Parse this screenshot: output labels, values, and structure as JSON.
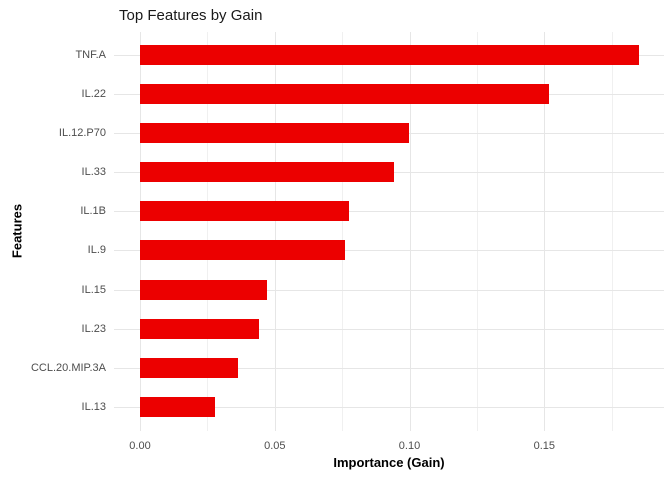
{
  "colors": {
    "bar": "#ec0000",
    "grid_major": "#e6e6e6",
    "grid_minor": "#f0f0f0",
    "tick_label_text": "#4d4d4d",
    "title_text": "#1a1a1a",
    "background": "#ffffff"
  },
  "chart_data": {
    "type": "bar",
    "orientation": "horizontal",
    "title": "Top Features by Gain",
    "xlabel": "Importance (Gain)",
    "ylabel": "Features",
    "categories": [
      "TNF.A",
      "IL.22",
      "IL.12.P70",
      "IL.33",
      "IL.1B",
      "IL.9",
      "IL.15",
      "IL.23",
      "CCL.20.MIP.3A",
      "IL.13"
    ],
    "values": [
      0.1851,
      0.1519,
      0.0999,
      0.0942,
      0.0777,
      0.0761,
      0.047,
      0.0443,
      0.0365,
      0.0278
    ],
    "bar_color": "#ec0000",
    "xlim": [
      -0.0097,
      0.1945
    ],
    "x_ticks": {
      "values": [
        0,
        0.05,
        0.1,
        0.15
      ],
      "labels": [
        "0.00",
        "0.05",
        "0.10",
        "0.15"
      ]
    },
    "x_minor_gridlines": [
      0.025,
      0.075,
      0.125,
      0.175
    ],
    "grid": "major and minor vertical, major horizontal per category",
    "legend_position": "none"
  }
}
